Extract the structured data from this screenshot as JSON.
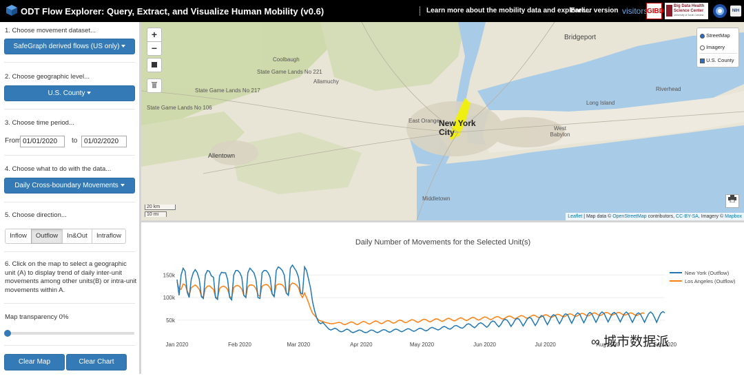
{
  "header": {
    "title": "ODT Flow Explorer: Query, Extract, and Visualize Human Mobility (v0.6)",
    "links": [
      "Learn more about the mobility data and explorer...",
      "Earlier version",
      "visitors"
    ],
    "logos": [
      "GIBD",
      "Big Data Health Science Center",
      "University of South Carolina"
    ]
  },
  "sidebar": {
    "step1": {
      "label": "1. Choose movement dataset...",
      "button": "SafeGraph derived flows (US only)"
    },
    "step2": {
      "label": "2. Choose geographic level...",
      "button": "U.S. County"
    },
    "step3": {
      "label": "3. Choose time period...",
      "from_label": "From",
      "from_value": "01/01/2020",
      "to_label": "to",
      "to_value": "01/02/2020"
    },
    "step4": {
      "label": "4. Choose what to do with the data...",
      "button": "Daily Cross-boundary Movements"
    },
    "step5": {
      "label": "5. Choose direction...",
      "options": [
        "Inflow",
        "Outflow",
        "In&Out",
        "Intraflow"
      ],
      "selected": "Outflow"
    },
    "step6": {
      "text": "6. Click on the map to select a geographic unit (A) to display trend of daily inter-unit movements among other units(B) or intra-unit movements within A."
    },
    "transparency": {
      "label": "Map transparency 0%",
      "value": 0
    },
    "buttons": {
      "clear_map": "Clear Map",
      "clear_chart": "Clear Chart"
    }
  },
  "map": {
    "zoom_in": "+",
    "zoom_out": "−",
    "layers": {
      "streetmap": "StreetMap",
      "imagery": "Imagery",
      "county": "U.S. County",
      "selected_base": "StreetMap",
      "county_checked": true
    },
    "labels": [
      "Bridgeport",
      "Coolbaugh",
      "Allamuchy",
      "State Game Lands No 221",
      "State Game Lands No 106",
      "State Game Lands No 217",
      "Allentown",
      "East Orange",
      "New York City",
      "Riverhead",
      "Long Island",
      "West Babylon",
      "Middletown"
    ],
    "scale": {
      "km": "20 km",
      "mi": "10 mi"
    },
    "attribution": {
      "leaflet": "Leaflet",
      "text1": " | Map data © ",
      "osm": "OpenStreetMap",
      "text2": " contributors, ",
      "license": "CC-BY-SA",
      "text3": ", Imagery © ",
      "mapbox": "Mapbox"
    },
    "colors": {
      "water": "#a8cbe8",
      "land": "#e8e4d6",
      "forest": "#cad9a5",
      "selected": "#f2f200"
    }
  },
  "chart_data": {
    "type": "line",
    "title": "Daily Number of Movements for the Selected Unit(s)",
    "xticks": [
      "Jan 2020",
      "Feb 2020",
      "Mar 2020",
      "Apr 2020",
      "May 2020",
      "Jun 2020",
      "Jul 2020",
      "Aug 2020",
      "Sep 2020"
    ],
    "yticks": [
      "50k",
      "100k",
      "150k"
    ],
    "ylim": [
      10000,
      175000
    ],
    "grid": true,
    "legend_position": "top-right",
    "series": [
      {
        "name": "New York (Outflow)",
        "color": "#1f77b4",
        "values": [
          140000,
          105000,
          150000,
          165000,
          158000,
          112000,
          100000,
          140000,
          155000,
          162000,
          155000,
          140000,
          102000,
          98000,
          150000,
          160000,
          158000,
          148000,
          145000,
          100000,
          96000,
          148000,
          156000,
          155000,
          155000,
          140000,
          100000,
          95000,
          150000,
          160000,
          160000,
          155000,
          145000,
          105000,
          100000,
          155000,
          165000,
          160000,
          155000,
          140000,
          100000,
          98000,
          155000,
          160000,
          160000,
          155000,
          145000,
          108000,
          102000,
          160000,
          168000,
          165000,
          160000,
          150000,
          110000,
          105000,
          165000,
          172000,
          165000,
          158000,
          145000,
          110000,
          108000,
          168000,
          160000,
          140000,
          120000,
          90000,
          70000,
          55000,
          45000,
          42000,
          45000,
          40000,
          35000,
          30000,
          28000,
          30000,
          32000,
          30000,
          26000,
          24000,
          25000,
          28000,
          30000,
          28000,
          24000,
          22000,
          24000,
          26000,
          28000,
          27000,
          24000,
          22000,
          23000,
          26000,
          28000,
          27000,
          24000,
          22000,
          24000,
          27000,
          29000,
          28000,
          25000,
          23000,
          25000,
          28000,
          30000,
          29000,
          26000,
          24000,
          26000,
          29000,
          31000,
          30000,
          27000,
          25000,
          27000,
          30000,
          32000,
          31000,
          28000,
          26000,
          28000,
          32000,
          34000,
          32000,
          30000,
          28000,
          30000,
          34000,
          36000,
          34000,
          31000,
          30000,
          33000,
          37000,
          38000,
          36000,
          33000,
          32000,
          35000,
          40000,
          42000,
          40000,
          36000,
          33000,
          37000,
          42000,
          44000,
          42000,
          38000,
          34000,
          38000,
          45000,
          48000,
          46000,
          40000,
          35000,
          40000,
          48000,
          52000,
          50000,
          44000,
          36000,
          42000,
          50000,
          54000,
          52000,
          45000,
          37000,
          44000,
          52000,
          56000,
          54000,
          46000,
          38000,
          45000,
          55000,
          60000,
          58000,
          48000,
          40000,
          48000,
          58000,
          62000,
          60000,
          50000,
          42000,
          50000,
          60000,
          64000,
          62000,
          52000,
          43000,
          52000,
          62000,
          66000,
          63000,
          53000,
          44000,
          53000,
          63000,
          67000,
          64000,
          54000,
          45000,
          54000,
          64000,
          68000,
          65000,
          55000,
          46000,
          55000,
          64000,
          67000,
          64000,
          55000,
          46000,
          55000,
          64000,
          68000,
          64000,
          54000,
          45000,
          54000,
          63000,
          66000,
          63000,
          54000,
          45000,
          55000,
          64000,
          68000,
          64000,
          55000,
          45000,
          56000,
          65000,
          69000,
          66000
        ]
      },
      {
        "name": "Los Angeles (Outflow)",
        "color": "#ff7f0e",
        "values": [
          135000,
          120000,
          118000,
          130000,
          128000,
          115000,
          105000,
          122000,
          125000,
          128000,
          124000,
          118000,
          104000,
          100000,
          120000,
          125000,
          126000,
          122000,
          118000,
          102000,
          98000,
          120000,
          124000,
          125000,
          123000,
          118000,
          103000,
          99000,
          122000,
          126000,
          127000,
          124000,
          119000,
          105000,
          101000,
          124000,
          128000,
          128000,
          126000,
          120000,
          106000,
          103000,
          125000,
          128000,
          129000,
          127000,
          121000,
          108000,
          104000,
          127000,
          130000,
          130000,
          128000,
          123000,
          110000,
          106000,
          128000,
          132000,
          131000,
          128000,
          122000,
          108000,
          100000,
          110000,
          100000,
          88000,
          75000,
          65000,
          60000,
          55000,
          50000,
          48000,
          47000,
          45000,
          44000,
          43000,
          42000,
          42000,
          43000,
          44000,
          45000,
          44000,
          41000,
          40000,
          42000,
          44000,
          46000,
          45000,
          42000,
          40000,
          42000,
          45000,
          47000,
          46000,
          43000,
          41000,
          43000,
          46000,
          48000,
          47000,
          44000,
          42000,
          44000,
          47000,
          49000,
          48000,
          45000,
          43000,
          45000,
          48000,
          50000,
          49000,
          46000,
          44000,
          46000,
          49000,
          51000,
          50000,
          47000,
          45000,
          47000,
          50000,
          52000,
          51000,
          48000,
          46000,
          48000,
          51000,
          53000,
          52000,
          49000,
          47000,
          49000,
          52000,
          54000,
          53000,
          50000,
          48000,
          50000,
          53000,
          55000,
          54000,
          51000,
          49000,
          51000,
          54000,
          56000,
          55000,
          52000,
          50000,
          52000,
          55000,
          57000,
          56000,
          53000,
          51000,
          53000,
          56000,
          58000,
          57000,
          54000,
          52000,
          54000,
          57000,
          59000,
          58000,
          55000,
          53000,
          55000,
          58000,
          60000,
          59000,
          56000,
          54000,
          56000,
          59000,
          61000,
          60000,
          57000,
          55000,
          57000,
          60000,
          62000,
          61000,
          58000,
          56000,
          58000,
          61000,
          63000,
          62000,
          59000,
          57000,
          59000,
          62000,
          64000,
          63000,
          60000,
          58000,
          60000,
          63000,
          65000,
          64000,
          61000,
          59000,
          61000,
          64000,
          66000,
          65000,
          62000,
          60000,
          62000,
          65000,
          67000,
          66000,
          63000,
          61000,
          63000,
          65000,
          67000,
          66000,
          63000,
          61000,
          62000,
          64000,
          66000,
          65000,
          62000,
          60000,
          62000,
          64000,
          66000,
          65000
        ]
      }
    ]
  },
  "watermark": "城市数据派"
}
